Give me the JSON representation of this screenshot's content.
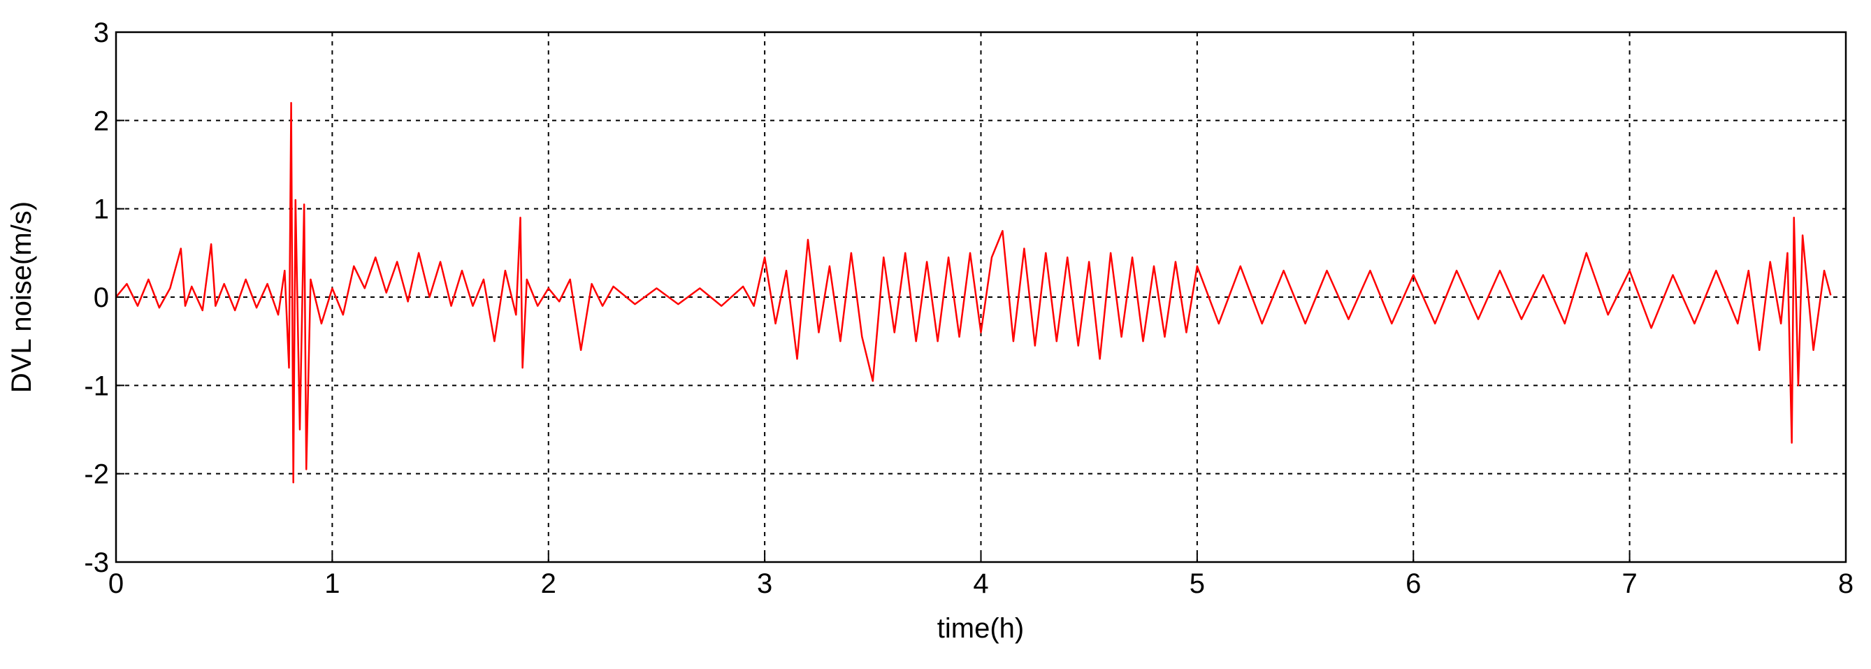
{
  "chart_data": {
    "type": "line",
    "xlabel": "time(h)",
    "ylabel": "DVL noise(m/s)",
    "xlim": [
      0,
      8
    ],
    "ylim": [
      -3,
      3
    ],
    "xticks": [
      0,
      1,
      2,
      3,
      4,
      5,
      6,
      7,
      8
    ],
    "yticks": [
      -3,
      -2,
      -1,
      0,
      1,
      2,
      3
    ],
    "grid": true,
    "series": [
      {
        "color": "#ff0000",
        "x": [
          0,
          0.05,
          0.1,
          0.15,
          0.2,
          0.25,
          0.3,
          0.32,
          0.35,
          0.4,
          0.44,
          0.46,
          0.5,
          0.55,
          0.6,
          0.65,
          0.7,
          0.75,
          0.78,
          0.8,
          0.81,
          0.82,
          0.83,
          0.85,
          0.87,
          0.88,
          0.9,
          0.95,
          1,
          1.05,
          1.1,
          1.15,
          1.2,
          1.25,
          1.3,
          1.35,
          1.4,
          1.45,
          1.5,
          1.55,
          1.6,
          1.65,
          1.7,
          1.75,
          1.8,
          1.85,
          1.87,
          1.88,
          1.9,
          1.95,
          2,
          2.05,
          2.1,
          2.15,
          2.2,
          2.25,
          2.3,
          2.4,
          2.5,
          2.6,
          2.7,
          2.8,
          2.9,
          2.95,
          3,
          3.05,
          3.1,
          3.15,
          3.2,
          3.25,
          3.3,
          3.35,
          3.4,
          3.45,
          3.5,
          3.55,
          3.6,
          3.65,
          3.7,
          3.75,
          3.8,
          3.85,
          3.9,
          3.95,
          4,
          4.05,
          4.1,
          4.15,
          4.2,
          4.25,
          4.3,
          4.35,
          4.4,
          4.45,
          4.5,
          4.55,
          4.6,
          4.65,
          4.7,
          4.75,
          4.8,
          4.85,
          4.9,
          4.95,
          5,
          5.1,
          5.2,
          5.3,
          5.4,
          5.5,
          5.6,
          5.7,
          5.8,
          5.9,
          6,
          6.1,
          6.2,
          6.3,
          6.4,
          6.5,
          6.6,
          6.7,
          6.8,
          6.9,
          7,
          7.1,
          7.2,
          7.3,
          7.4,
          7.5,
          7.55,
          7.6,
          7.65,
          7.7,
          7.73,
          7.75,
          7.76,
          7.78,
          7.8,
          7.85,
          7.9,
          7.93
        ],
        "values": [
          0,
          0.15,
          -0.1,
          0.2,
          -0.12,
          0.1,
          0.55,
          -0.1,
          0.12,
          -0.15,
          0.6,
          -0.1,
          0.15,
          -0.15,
          0.2,
          -0.12,
          0.15,
          -0.2,
          0.3,
          -0.8,
          2.2,
          -2.1,
          1.1,
          -1.5,
          1.05,
          -1.95,
          0.2,
          -0.3,
          0.1,
          -0.2,
          0.35,
          0.1,
          0.45,
          0.05,
          0.4,
          -0.05,
          0.5,
          0,
          0.4,
          -0.1,
          0.3,
          -0.1,
          0.2,
          -0.5,
          0.3,
          -0.2,
          0.9,
          -0.8,
          0.2,
          -0.1,
          0.1,
          -0.05,
          0.2,
          -0.6,
          0.15,
          -0.1,
          0.12,
          -0.08,
          0.1,
          -0.08,
          0.1,
          -0.1,
          0.12,
          -0.1,
          0.45,
          -0.3,
          0.3,
          -0.7,
          0.65,
          -0.4,
          0.35,
          -0.5,
          0.5,
          -0.45,
          -0.95,
          0.45,
          -0.4,
          0.5,
          -0.5,
          0.4,
          -0.5,
          0.45,
          -0.45,
          0.5,
          -0.4,
          0.45,
          0.75,
          -0.5,
          0.55,
          -0.55,
          0.5,
          -0.5,
          0.45,
          -0.55,
          0.4,
          -0.7,
          0.5,
          -0.45,
          0.45,
          -0.5,
          0.35,
          -0.45,
          0.4,
          -0.4,
          0.35,
          -0.3,
          0.35,
          -0.3,
          0.3,
          -0.3,
          0.3,
          -0.25,
          0.3,
          -0.3,
          0.25,
          -0.3,
          0.3,
          -0.25,
          0.3,
          -0.25,
          0.25,
          -0.3,
          0.5,
          -0.2,
          0.3,
          -0.35,
          0.25,
          -0.3,
          0.3,
          -0.3,
          0.3,
          -0.6,
          0.4,
          -0.3,
          0.5,
          -1.65,
          0.9,
          -1.0,
          0.7,
          -0.6,
          0.3,
          0.02
        ]
      }
    ]
  }
}
